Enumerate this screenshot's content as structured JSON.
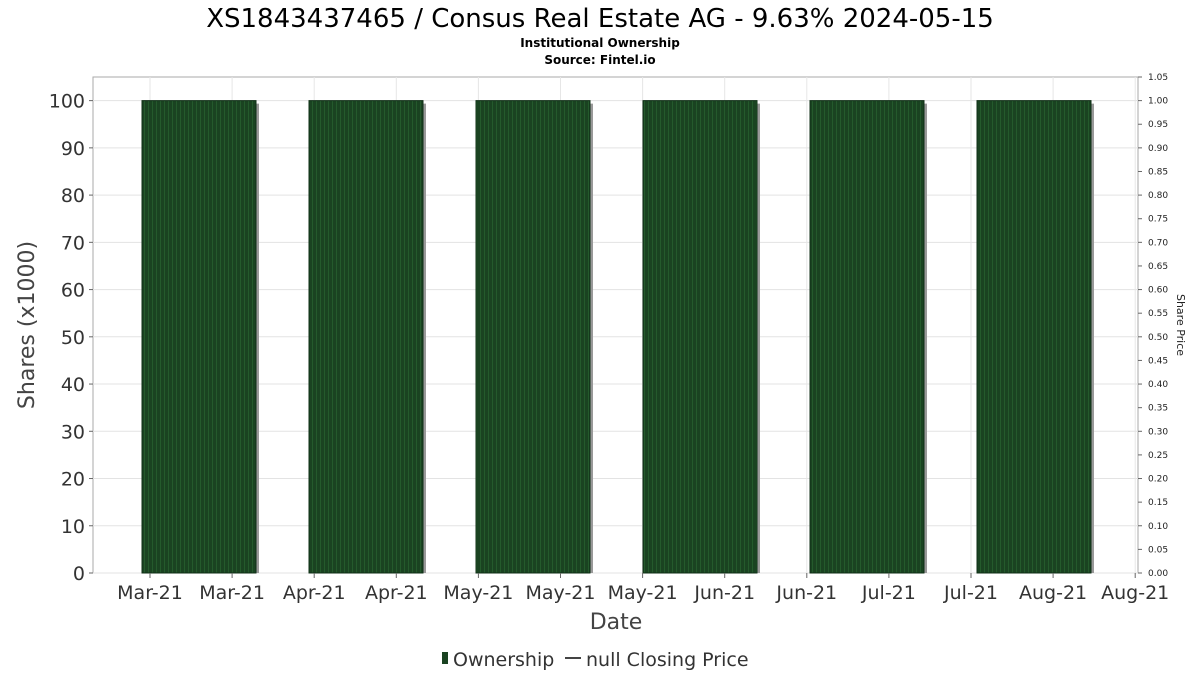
{
  "chart_data": {
    "type": "bar",
    "title": "XS1843437465 / Consus Real Estate AG - 9.63% 2024-05-15",
    "subtitle": "Institutional Ownership",
    "source": "Source: Fintel.io",
    "xlabel": "Date",
    "ylabel": "Shares (x1000)",
    "y2label": "Share Price",
    "ylim": [
      0,
      105
    ],
    "y2lim": [
      0,
      1.05
    ],
    "yticks": [
      "0",
      "10",
      "20",
      "30",
      "40",
      "50",
      "60",
      "70",
      "80",
      "90",
      "100"
    ],
    "y2ticks": [
      "0.00",
      "0.05",
      "0.10",
      "0.15",
      "0.20",
      "0.25",
      "0.30",
      "0.35",
      "0.40",
      "0.45",
      "0.50",
      "0.55",
      "0.60",
      "0.65",
      "0.70",
      "0.75",
      "0.80",
      "0.85",
      "0.90",
      "0.95",
      "1.00",
      "1.05"
    ],
    "xticks": [
      "Mar-21",
      "Mar-21",
      "Apr-21",
      "Apr-21",
      "May-21",
      "May-21",
      "May-21",
      "Jun-21",
      "Jun-21",
      "Jul-21",
      "Jul-21",
      "Aug-21",
      "Aug-21"
    ],
    "grid": true,
    "legend_position": "bottom",
    "series": [
      {
        "name": "Ownership",
        "color": "#1a4321",
        "values": [
          100,
          100,
          100,
          100,
          100,
          100
        ]
      },
      {
        "name": "null Closing Price",
        "color": "#444444",
        "values": []
      }
    ]
  }
}
